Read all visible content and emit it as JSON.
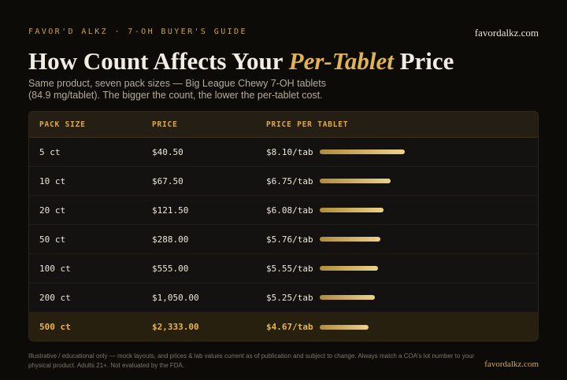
{
  "header": {
    "eyebrow": "FAVOR'D ALKZ · 7-OH BUYER'S GUIDE",
    "site": "favordalkz.com",
    "title_before": "How Count Affects Your ",
    "title_accent": "Per-Tablet",
    "title_after": " Price",
    "subtitle": "Same product, seven pack sizes — Big League Chewy 7-OH tablets (84.9 mg/tablet). The bigger the count, the lower the per-tablet cost."
  },
  "table": {
    "columns": [
      "PACK SIZE",
      "PRICE",
      "PRICE PER TABLET"
    ],
    "rows": [
      {
        "size": "5 ct",
        "price": "$40.50",
        "per_tab": "$8.10/tab",
        "per_tab_value": 8.1
      },
      {
        "size": "10 ct",
        "price": "$67.50",
        "per_tab": "$6.75/tab",
        "per_tab_value": 6.75
      },
      {
        "size": "20 ct",
        "price": "$121.50",
        "per_tab": "$6.08/tab",
        "per_tab_value": 6.08
      },
      {
        "size": "50 ct",
        "price": "$288.00",
        "per_tab": "$5.76/tab",
        "per_tab_value": 5.76
      },
      {
        "size": "100 ct",
        "price": "$555.00",
        "per_tab": "$5.55/tab",
        "per_tab_value": 5.55
      },
      {
        "size": "200 ct",
        "price": "$1,050.00",
        "per_tab": "$5.25/tab",
        "per_tab_value": 5.25
      },
      {
        "size": "500 ct",
        "price": "$2,333.00",
        "per_tab": "$4.67/tab",
        "per_tab_value": 4.67,
        "highlight": true
      }
    ]
  },
  "footer": {
    "note": "Illustrative / educational only — mock layouts, and prices & lab values current as of publication and subject to change. Always match a COA's lot number to your physical product. Adults 21+. Not evaluated by the FDA.",
    "site": "favordalkz.com"
  },
  "colors": {
    "accent": "#e0b355",
    "background": "#0d0b08",
    "header_row": "#251e14"
  }
}
